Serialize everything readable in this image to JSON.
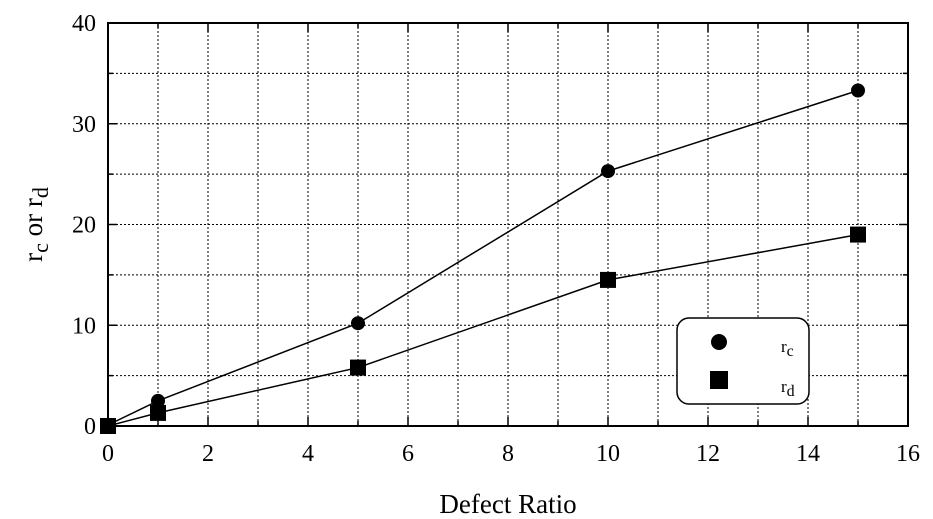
{
  "chart_data": {
    "type": "line",
    "title": "",
    "xlabel": "Defect Ratio",
    "ylabel": {
      "main1": "r",
      "sub1": "c",
      "middle": " or ",
      "main2": "r",
      "sub2": "d"
    },
    "xlim": [
      0,
      16
    ],
    "ylim": [
      0,
      40
    ],
    "xticks": [
      0,
      2,
      4,
      6,
      8,
      10,
      12,
      14,
      16
    ],
    "yticks": [
      0,
      10,
      20,
      30,
      40
    ],
    "grid": true,
    "legend_position": "bottom-right",
    "series": [
      {
        "legend_main": "r",
        "legend_sub": "c",
        "marker": "circle",
        "color": "#000000",
        "x": [
          0,
          1,
          5,
          10,
          15
        ],
        "y": [
          0.1,
          2.5,
          10.2,
          25.3,
          33.3
        ]
      },
      {
        "legend_main": "r",
        "legend_sub": "d",
        "marker": "square",
        "color": "#000000",
        "x": [
          0,
          1,
          5,
          10,
          15
        ],
        "y": [
          0,
          1.3,
          5.8,
          14.5,
          19.0
        ]
      }
    ]
  }
}
